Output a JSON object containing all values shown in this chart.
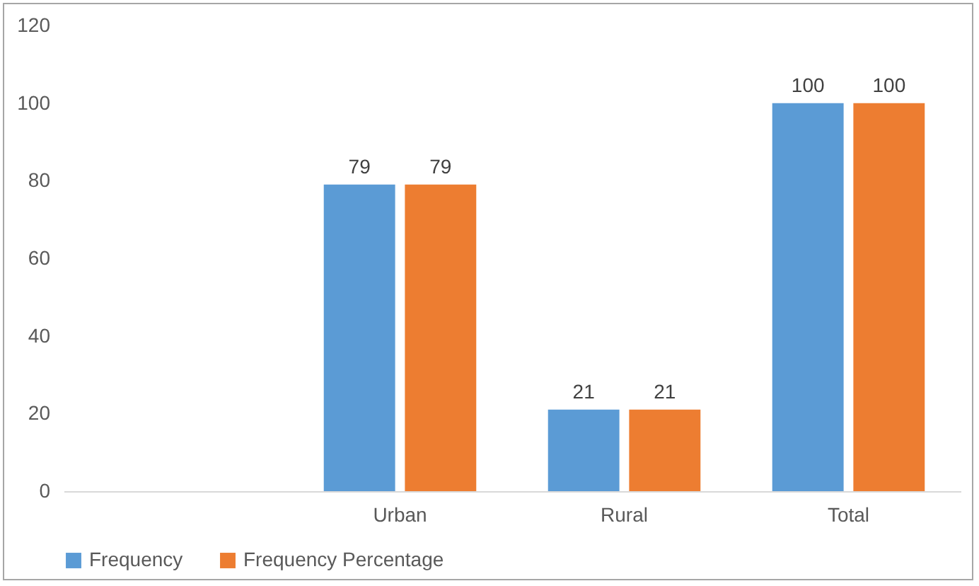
{
  "chart_data": {
    "type": "bar",
    "categories": [
      null,
      "Urban",
      "Rural",
      "Total"
    ],
    "series": [
      {
        "name": "Frequency",
        "color": "#5b9bd5",
        "values": [
          null,
          79,
          21,
          100
        ]
      },
      {
        "name": "Frequency Percentage",
        "color": "#ed7d31",
        "values": [
          null,
          79,
          21,
          100
        ]
      }
    ],
    "ylim": [
      0,
      120
    ],
    "yticks": [
      0,
      20,
      40,
      60,
      80,
      100,
      120
    ],
    "grid": false,
    "legend": "bottom",
    "data_labels": true
  }
}
